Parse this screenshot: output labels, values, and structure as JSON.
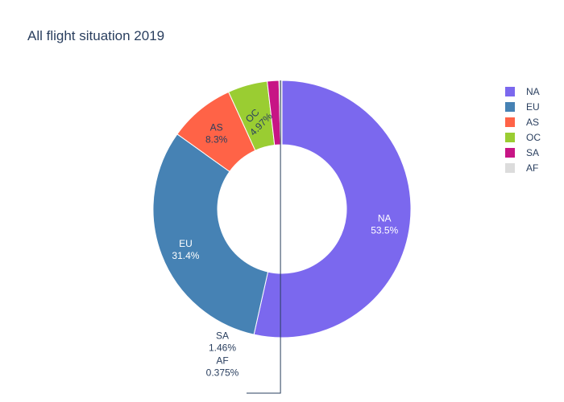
{
  "chart_data": {
    "type": "pie",
    "title": "All flight situation 2019",
    "hole": true,
    "legend_position": "top-right",
    "slices": [
      {
        "label": "NA",
        "percent": 53.5,
        "percent_text": "53.5%",
        "color": "#7b68ee",
        "text_color": "#ffffff"
      },
      {
        "label": "EU",
        "percent": 31.4,
        "percent_text": "31.4%",
        "color": "#4682b4",
        "text_color": "#ffffff"
      },
      {
        "label": "AS",
        "percent": 8.3,
        "percent_text": "8.3%",
        "color": "#ff6347",
        "text_color": "#2a3f5f"
      },
      {
        "label": "OC",
        "percent": 4.97,
        "percent_text": "4.97%",
        "color": "#9acd32",
        "text_color": "#2a3f5f"
      },
      {
        "label": "SA",
        "percent": 1.46,
        "percent_text": "1.46%",
        "color": "#c71585",
        "text_color": "#2a3f5f"
      },
      {
        "label": "AF",
        "percent": 0.375,
        "percent_text": "0.375%",
        "color": "#dcdcdc",
        "text_color": "#2a3f5f"
      }
    ]
  }
}
